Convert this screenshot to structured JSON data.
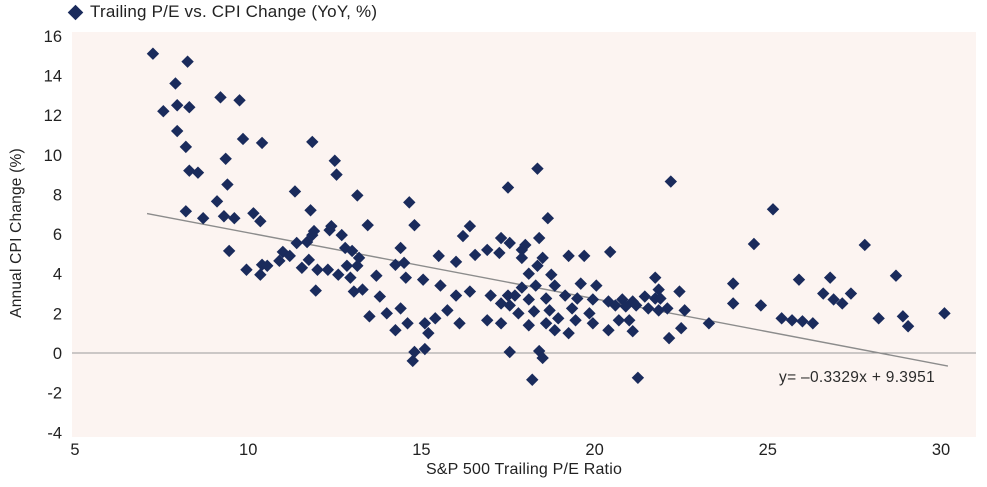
{
  "legend": {
    "label": "Trailing P/E vs. CPI Change (YoY, %)",
    "marker_icon": "diamond-icon"
  },
  "axes": {
    "y_title": "Annual CPI Change (%)",
    "x_title": "S&P 500 Trailing P/E Ratio",
    "x_ticks": [
      5,
      10,
      15,
      20,
      25,
      30
    ],
    "y_ticks": [
      16,
      14,
      12,
      10,
      8,
      6,
      4,
      2,
      0,
      -2,
      -4
    ]
  },
  "trendline": {
    "equation_label": "y= –0.3329x + 9.3951",
    "slope": -0.3329,
    "intercept": 9.3951,
    "x_start": 7.08,
    "x_end": 30.2
  },
  "colors": {
    "marker": "#1a2b5c",
    "plot_background": "#fcf4f1",
    "trend_line": "#8c8c8c",
    "zero_line": "#9a9a9a",
    "text": "#222222"
  },
  "chart_data": {
    "type": "scatter",
    "title": "Trailing P/E vs. CPI Change (YoY, %)",
    "xlabel": "S&P 500 Trailing P/E Ratio",
    "ylabel": "Annual CPI Change (%)",
    "xlim": [
      5,
      30
    ],
    "ylim": [
      -4,
      16
    ],
    "grid": "zero-line-only",
    "legend_position": "top-left",
    "marker": "diamond",
    "trendline_equation": "y = -0.3329x + 9.3951",
    "points": [
      [
        7.25,
        15.1
      ],
      [
        7.55,
        12.2
      ],
      [
        7.9,
        13.6
      ],
      [
        7.95,
        12.5
      ],
      [
        7.95,
        11.2
      ],
      [
        8.2,
        10.4
      ],
      [
        8.2,
        7.15
      ],
      [
        8.25,
        14.7
      ],
      [
        8.3,
        12.4
      ],
      [
        8.3,
        9.2
      ],
      [
        8.55,
        9.1
      ],
      [
        8.7,
        6.8
      ],
      [
        9.1,
        7.65
      ],
      [
        9.2,
        12.9
      ],
      [
        9.3,
        6.9
      ],
      [
        9.35,
        9.8
      ],
      [
        9.4,
        8.5
      ],
      [
        9.45,
        5.15
      ],
      [
        9.6,
        6.8
      ],
      [
        9.75,
        12.75
      ],
      [
        9.85,
        10.8
      ],
      [
        9.95,
        4.2
      ],
      [
        10.15,
        7.05
      ],
      [
        10.35,
        6.65
      ],
      [
        10.35,
        3.95
      ],
      [
        10.4,
        10.6
      ],
      [
        10.4,
        4.45
      ],
      [
        10.55,
        4.4
      ],
      [
        10.9,
        4.65
      ],
      [
        11.0,
        5.1
      ],
      [
        11.2,
        4.9
      ],
      [
        11.35,
        8.15
      ],
      [
        11.4,
        5.55
      ],
      [
        11.55,
        4.3
      ],
      [
        11.7,
        5.6
      ],
      [
        11.75,
        4.7
      ],
      [
        11.8,
        7.2
      ],
      [
        11.85,
        10.65
      ],
      [
        11.85,
        5.95
      ],
      [
        11.9,
        6.15
      ],
      [
        11.95,
        3.15
      ],
      [
        12.0,
        4.2
      ],
      [
        12.3,
        4.2
      ],
      [
        12.35,
        6.2
      ],
      [
        12.4,
        6.4
      ],
      [
        12.5,
        9.7
      ],
      [
        12.55,
        9.0
      ],
      [
        12.6,
        3.95
      ],
      [
        12.7,
        5.95
      ],
      [
        12.8,
        5.3
      ],
      [
        12.85,
        4.4
      ],
      [
        12.95,
        3.8
      ],
      [
        13.0,
        5.15
      ],
      [
        13.05,
        3.1
      ],
      [
        13.15,
        7.95
      ],
      [
        13.15,
        4.4
      ],
      [
        13.2,
        4.8
      ],
      [
        13.3,
        3.2
      ],
      [
        13.45,
        6.45
      ],
      [
        13.5,
        1.85
      ],
      [
        13.7,
        3.9
      ],
      [
        13.8,
        2.85
      ],
      [
        14.0,
        2.0
      ],
      [
        14.25,
        4.45
      ],
      [
        14.25,
        1.15
      ],
      [
        14.4,
        5.3
      ],
      [
        14.4,
        2.25
      ],
      [
        14.5,
        4.55
      ],
      [
        14.55,
        3.8
      ],
      [
        14.6,
        1.5
      ],
      [
        14.65,
        7.6
      ],
      [
        14.75,
        -0.4
      ],
      [
        14.8,
        6.45
      ],
      [
        14.8,
        0.05
      ],
      [
        15.05,
        3.7
      ],
      [
        15.1,
        1.5
      ],
      [
        15.1,
        0.2
      ],
      [
        15.2,
        1.0
      ],
      [
        15.4,
        1.75
      ],
      [
        15.5,
        4.9
      ],
      [
        15.55,
        3.4
      ],
      [
        15.75,
        2.15
      ],
      [
        16.0,
        4.6
      ],
      [
        16.0,
        2.9
      ],
      [
        16.1,
        1.5
      ],
      [
        16.2,
        5.9
      ],
      [
        16.4,
        6.4
      ],
      [
        16.4,
        3.1
      ],
      [
        16.55,
        4.95
      ],
      [
        16.9,
        5.2
      ],
      [
        16.9,
        1.65
      ],
      [
        17.0,
        2.9
      ],
      [
        17.25,
        5.05
      ],
      [
        17.3,
        5.8
      ],
      [
        17.3,
        2.5
      ],
      [
        17.3,
        1.5
      ],
      [
        17.5,
        8.35
      ],
      [
        17.5,
        2.9
      ],
      [
        17.55,
        5.55
      ],
      [
        17.55,
        2.4
      ],
      [
        17.55,
        0.05
      ],
      [
        17.7,
        2.9
      ],
      [
        17.8,
        2.0
      ],
      [
        17.9,
        5.2
      ],
      [
        17.9,
        4.8
      ],
      [
        17.9,
        3.3
      ],
      [
        18.0,
        5.45
      ],
      [
        18.1,
        4.0
      ],
      [
        18.1,
        2.7
      ],
      [
        18.1,
        1.4
      ],
      [
        18.2,
        -1.35
      ],
      [
        18.25,
        2.1
      ],
      [
        18.3,
        3.4
      ],
      [
        18.35,
        9.3
      ],
      [
        18.35,
        4.4
      ],
      [
        18.4,
        5.8
      ],
      [
        18.4,
        0.1
      ],
      [
        18.5,
        4.8
      ],
      [
        18.5,
        -0.25
      ],
      [
        18.6,
        2.75
      ],
      [
        18.6,
        1.5
      ],
      [
        18.65,
        6.8
      ],
      [
        18.7,
        2.15
      ],
      [
        18.75,
        3.95
      ],
      [
        18.85,
        3.4
      ],
      [
        18.85,
        1.15
      ],
      [
        18.95,
        1.75
      ],
      [
        19.15,
        2.9
      ],
      [
        19.25,
        4.9
      ],
      [
        19.25,
        1.0
      ],
      [
        19.35,
        2.25
      ],
      [
        19.45,
        1.65
      ],
      [
        19.5,
        2.75
      ],
      [
        19.6,
        3.5
      ],
      [
        19.7,
        4.9
      ],
      [
        19.85,
        2.0
      ],
      [
        19.95,
        2.7
      ],
      [
        19.95,
        1.5
      ],
      [
        20.05,
        3.4
      ],
      [
        20.4,
        2.6
      ],
      [
        20.4,
        1.15
      ],
      [
        20.45,
        5.1
      ],
      [
        20.6,
        2.4
      ],
      [
        20.7,
        1.65
      ],
      [
        20.8,
        2.7
      ],
      [
        20.9,
        2.35
      ],
      [
        21.0,
        1.65
      ],
      [
        21.1,
        2.6
      ],
      [
        21.1,
        1.1
      ],
      [
        21.2,
        2.4
      ],
      [
        21.25,
        -1.25
      ],
      [
        21.45,
        2.85
      ],
      [
        21.55,
        2.25
      ],
      [
        21.75,
        3.8
      ],
      [
        21.75,
        2.75
      ],
      [
        21.85,
        3.2
      ],
      [
        21.85,
        2.15
      ],
      [
        21.9,
        2.75
      ],
      [
        22.1,
        2.25
      ],
      [
        22.15,
        0.75
      ],
      [
        22.2,
        8.65
      ],
      [
        22.45,
        3.1
      ],
      [
        22.5,
        1.25
      ],
      [
        22.6,
        2.15
      ],
      [
        23.3,
        1.5
      ],
      [
        24.0,
        3.5
      ],
      [
        24.0,
        2.5
      ],
      [
        24.6,
        5.5
      ],
      [
        24.8,
        2.4
      ],
      [
        25.15,
        7.25
      ],
      [
        25.4,
        1.75
      ],
      [
        25.7,
        1.65
      ],
      [
        25.9,
        3.7
      ],
      [
        26.0,
        1.6
      ],
      [
        26.3,
        1.5
      ],
      [
        26.6,
        3.0
      ],
      [
        26.8,
        3.8
      ],
      [
        26.9,
        2.7
      ],
      [
        27.15,
        2.5
      ],
      [
        27.4,
        3.0
      ],
      [
        27.8,
        5.45
      ],
      [
        28.2,
        1.75
      ],
      [
        28.7,
        3.9
      ],
      [
        28.9,
        1.85
      ],
      [
        29.05,
        1.35
      ],
      [
        30.1,
        2.0
      ]
    ]
  }
}
